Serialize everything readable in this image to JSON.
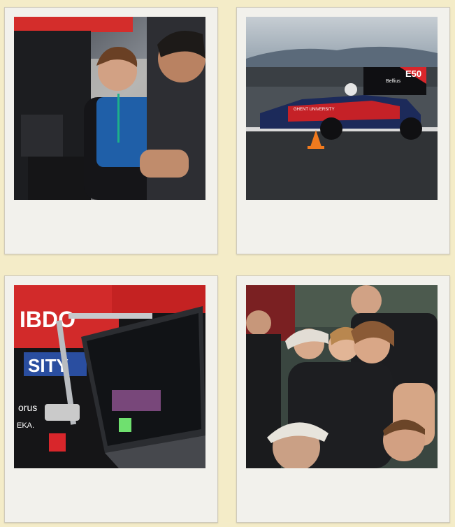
{
  "gallery": {
    "items": [
      {
        "icon": "photo-mechanic-smiling",
        "overlay_text": []
      },
      {
        "icon": "photo-race-car-track",
        "overlay_text": [
          "E50",
          "Belfius",
          "GHENT UNIVERSITY"
        ]
      },
      {
        "icon": "photo-laptop-telemetry",
        "overlay_text": [
          "IBDO",
          "SITY",
          "orus",
          "EKA."
        ]
      },
      {
        "icon": "photo-team-celebration",
        "overlay_text": []
      }
    ]
  },
  "colors": {
    "page_bg": "#f4ecc8",
    "frame_bg": "#f2f1ec",
    "accent_red": "#d8262b"
  }
}
